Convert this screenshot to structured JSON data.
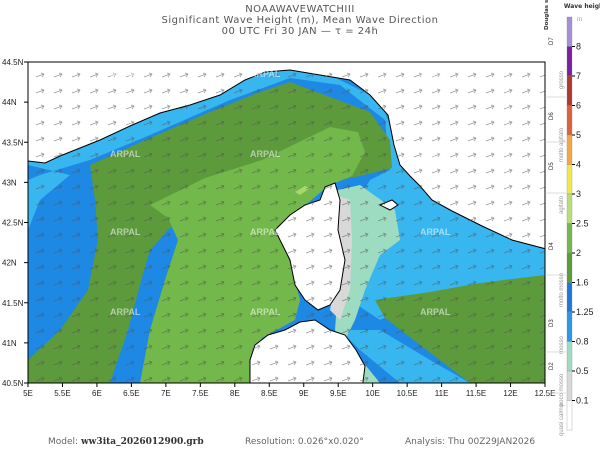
{
  "header": {
    "model_name": "NOAAWAVEWATCHIII",
    "title": "Significant Wave Height (m), Mean Wave Direction",
    "subtitle": "00 UTC Fri 30 JAN  —  τ = 24h"
  },
  "map": {
    "x_ticks": [
      "5E",
      "5.5E",
      "6E",
      "6.5E",
      "7E",
      "7.5E",
      "8E",
      "8.5E",
      "9E",
      "9.5E",
      "10E",
      "10.5E",
      "11E",
      "11.5E",
      "12E",
      "12.5E"
    ],
    "y_ticks": [
      "44.5N",
      "44N",
      "43.5N",
      "43N",
      "42.5N",
      "42N",
      "41.5N",
      "41N",
      "40.5N"
    ],
    "watermark": "ARPAL",
    "direction_arrows": "east-northeast",
    "colors": {
      "land": "#ffffff",
      "coast": "#000000",
      "blue_dark": "#1e88e5",
      "blue_light": "#38b6f0",
      "teal": "#9ddcc0",
      "gray": "#d8d8d8",
      "green_dark": "#5c9a3c",
      "green_mid": "#72b84a",
      "green_light": "#a8d86a"
    }
  },
  "legend": {
    "title": "Wave height",
    "unit": "m",
    "douglas_title": "Douglas scale",
    "levels": [
      "8",
      "7",
      "6",
      "5",
      "4",
      "3",
      "2.5",
      "2",
      "1.6",
      "1.25",
      "0.8",
      "0.5",
      "0.1"
    ],
    "bins": [
      {
        "color": "#a58fd8"
      },
      {
        "color": "#7a1fa2"
      },
      {
        "color": "#b03a2e"
      },
      {
        "color": "#e0603a"
      },
      {
        "color": "#f5a742"
      },
      {
        "color": "#f2e84a"
      },
      {
        "color": "#b9dd78"
      },
      {
        "color": "#72b84a"
      },
      {
        "color": "#5c9a3c"
      },
      {
        "color": "#1e78d8"
      },
      {
        "color": "#2a98e8"
      },
      {
        "color": "#9ddcc0"
      },
      {
        "color": "#d8d8d8"
      },
      {
        "color": "#ffffff"
      }
    ],
    "douglas": [
      {
        "code": "D7",
        "label": "grosso"
      },
      {
        "code": "D6",
        "label": "molto agitato"
      },
      {
        "code": "D5",
        "label": "agitato"
      },
      {
        "code": "D4",
        "label": "molto mosso"
      },
      {
        "code": "D3",
        "label": "mosso"
      },
      {
        "code": "D2",
        "label": "poco mosso"
      },
      {
        "code": "",
        "label": "quasi calmo"
      }
    ]
  },
  "footer": {
    "model_label": "Model:",
    "model_value": "ww3ita_2026012900.grb",
    "resolution": "Resolution: 0.026°x0.020°",
    "analysis": "Analysis: Thu  00Z29JAN2026"
  }
}
